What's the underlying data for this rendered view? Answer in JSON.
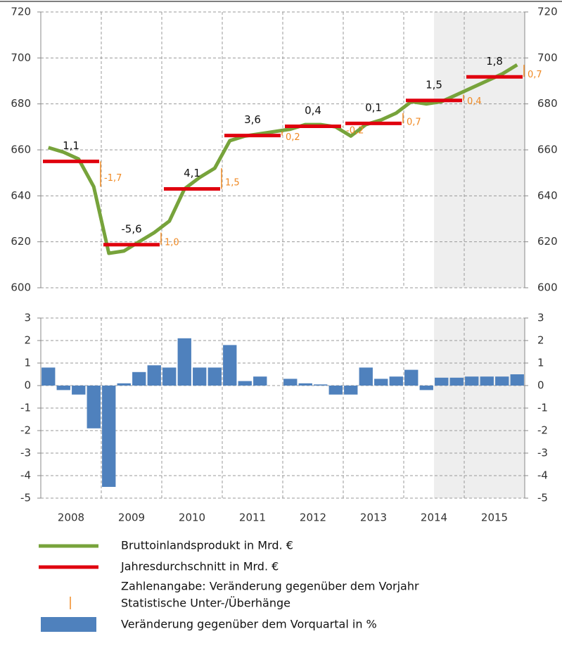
{
  "chart_data": [
    {
      "type": "line",
      "ylim": [
        600,
        720
      ],
      "yticks": [
        600,
        620,
        640,
        660,
        680,
        700,
        720
      ],
      "grid": true,
      "series": [
        {
          "name": "Bruttoinlandsprodukt in Mrd. €",
          "color": "#77a33b",
          "values": [
            661,
            659,
            656,
            644,
            615,
            616,
            620,
            624,
            629,
            643,
            648,
            652,
            664,
            666,
            667,
            668,
            669,
            671,
            671,
            670,
            666,
            671,
            673,
            676,
            681,
            680,
            681,
            684,
            687,
            690,
            693,
            697
          ]
        },
        {
          "name": "Jahresdurchschnitt in Mrd. €",
          "color": "#e0000e",
          "values": [
            655,
            618.75,
            643,
            666.25,
            670.25,
            671.5,
            681.5,
            691.75
          ]
        }
      ],
      "annual_change": {
        "name": "Zahlenangabe: Veränderung gegenüber dem Vorjahr",
        "values": [
          1.1,
          -5.6,
          4.1,
          3.6,
          0.4,
          0.1,
          1.5,
          1.8
        ],
        "value_labels": [
          "1,1",
          "-5,6",
          "4,1",
          "3,6",
          "0,4",
          "0,1",
          "1,5",
          "1,8"
        ]
      },
      "overhang": {
        "name": "Statistische Unter-/Überhänge",
        "color": "#f08a24",
        "values": [
          -1.7,
          1.0,
          1.5,
          0.2,
          -0.2,
          0.7,
          0.4,
          0.7
        ],
        "value_labels": [
          "-1,7",
          "1,0",
          "1,5",
          "0,2",
          "-0,2",
          "0,7",
          "0,4",
          "0,7"
        ]
      }
    },
    {
      "type": "bar",
      "years": [
        "2008",
        "2009",
        "2010",
        "2011",
        "2012",
        "2013",
        "2014",
        "2015"
      ],
      "ylim": [
        -5,
        3
      ],
      "yticks": [
        -5,
        -4,
        -3,
        -2,
        -1,
        0,
        1,
        2,
        3
      ],
      "grid": true,
      "series": [
        {
          "name": "Veränderung gegenüber dem Vorquartal in %",
          "color": "#4f81bd",
          "values": [
            0.8,
            -0.2,
            -0.4,
            -1.9,
            -4.5,
            0.1,
            0.6,
            0.9,
            0.8,
            2.1,
            0.8,
            0.8,
            1.8,
            0.2,
            0.4,
            0.0,
            0.3,
            0.1,
            0.05,
            -0.4,
            -0.4,
            0.8,
            0.3,
            0.4,
            0.7,
            -0.2,
            0.35,
            0.35,
            0.4,
            0.4,
            0.4,
            0.5
          ]
        }
      ]
    }
  ]
}
